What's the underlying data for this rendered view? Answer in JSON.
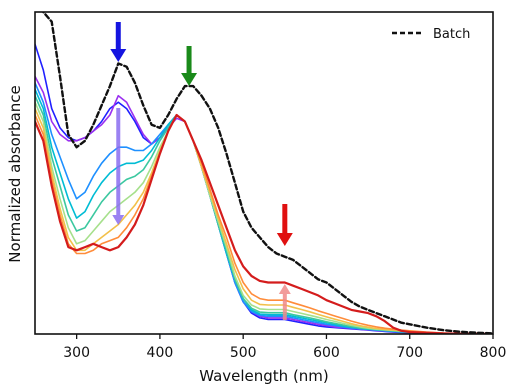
{
  "chart_data": {
    "type": "line",
    "title": "",
    "xlabel": "Wavelength (nm)",
    "ylabel": "Normalized absorbance",
    "xlim": [
      250,
      800
    ],
    "ylim": [
      0,
      1
    ],
    "x_ticks": [
      "300",
      "400",
      "500",
      "600",
      "700",
      "800"
    ],
    "y_ticks": [],
    "grid": false,
    "legend_position": "top-right",
    "x": [
      250,
      260,
      270,
      280,
      290,
      300,
      310,
      320,
      330,
      340,
      350,
      360,
      370,
      380,
      390,
      400,
      410,
      420,
      430,
      440,
      450,
      460,
      470,
      480,
      490,
      500,
      510,
      520,
      530,
      540,
      550,
      560,
      570,
      580,
      590,
      600,
      610,
      620,
      630,
      640,
      650,
      660,
      670,
      680,
      690,
      700,
      720,
      740,
      760,
      780,
      800
    ],
    "series": [
      {
        "name": "Batch",
        "color": "#111111",
        "dash": true,
        "width": 2.4,
        "values": [
          1.03,
          1.0,
          0.97,
          0.8,
          0.62,
          0.58,
          0.6,
          0.65,
          0.71,
          0.77,
          0.84,
          0.83,
          0.78,
          0.71,
          0.65,
          0.64,
          0.68,
          0.73,
          0.77,
          0.77,
          0.74,
          0.7,
          0.64,
          0.56,
          0.47,
          0.38,
          0.33,
          0.3,
          0.27,
          0.25,
          0.24,
          0.23,
          0.21,
          0.19,
          0.17,
          0.16,
          0.14,
          0.12,
          0.1,
          0.085,
          0.075,
          0.065,
          0.055,
          0.045,
          0.035,
          0.03,
          0.02,
          0.012,
          0.007,
          0.004,
          0.002
        ]
      },
      {
        "color": "#2020ff",
        "width": 1.6,
        "values": [
          0.9,
          0.82,
          0.7,
          0.64,
          0.61,
          0.6,
          0.61,
          0.63,
          0.66,
          0.7,
          0.72,
          0.7,
          0.66,
          0.61,
          0.59,
          0.61,
          0.64,
          0.68,
          0.66,
          0.6,
          0.52,
          0.43,
          0.34,
          0.25,
          0.16,
          0.1,
          0.065,
          0.05,
          0.045,
          0.045,
          0.045,
          0.04,
          0.035,
          0.03,
          0.025,
          0.022,
          0.02,
          0.018,
          0.016,
          0.014,
          0.012,
          0.01,
          0.008,
          0.006,
          0.005,
          0.004,
          0.003,
          0.002,
          0.001,
          0.001,
          0.0
        ]
      },
      {
        "color": "#9b30f0",
        "width": 1.6,
        "values": [
          0.8,
          0.75,
          0.66,
          0.62,
          0.6,
          0.6,
          0.61,
          0.63,
          0.65,
          0.68,
          0.74,
          0.72,
          0.67,
          0.62,
          0.59,
          0.61,
          0.64,
          0.67,
          0.66,
          0.6,
          0.52,
          0.43,
          0.34,
          0.25,
          0.16,
          0.1,
          0.07,
          0.055,
          0.05,
          0.05,
          0.05,
          0.045,
          0.04,
          0.035,
          0.03,
          0.026,
          0.022,
          0.02,
          0.018,
          0.015,
          0.013,
          0.011,
          0.009,
          0.007,
          0.006,
          0.005,
          0.003,
          0.002,
          0.001,
          0.001,
          0.0
        ]
      },
      {
        "color": "#1e90ff",
        "width": 1.6,
        "values": [
          0.78,
          0.72,
          0.62,
          0.55,
          0.48,
          0.42,
          0.44,
          0.49,
          0.53,
          0.56,
          0.58,
          0.58,
          0.57,
          0.57,
          0.59,
          0.62,
          0.65,
          0.68,
          0.66,
          0.6,
          0.52,
          0.43,
          0.34,
          0.25,
          0.16,
          0.1,
          0.07,
          0.058,
          0.055,
          0.055,
          0.055,
          0.05,
          0.045,
          0.04,
          0.035,
          0.03,
          0.026,
          0.022,
          0.019,
          0.016,
          0.014,
          0.012,
          0.01,
          0.008,
          0.006,
          0.005,
          0.004,
          0.002,
          0.001,
          0.001,
          0.0
        ]
      },
      {
        "color": "#00bcd4",
        "width": 1.6,
        "values": [
          0.76,
          0.7,
          0.58,
          0.5,
          0.42,
          0.36,
          0.38,
          0.43,
          0.47,
          0.5,
          0.52,
          0.53,
          0.53,
          0.54,
          0.57,
          0.61,
          0.65,
          0.68,
          0.66,
          0.6,
          0.52,
          0.43,
          0.34,
          0.25,
          0.17,
          0.11,
          0.075,
          0.062,
          0.06,
          0.06,
          0.06,
          0.055,
          0.05,
          0.045,
          0.04,
          0.035,
          0.03,
          0.025,
          0.021,
          0.018,
          0.015,
          0.013,
          0.011,
          0.009,
          0.007,
          0.006,
          0.004,
          0.002,
          0.001,
          0.001,
          0.0
        ]
      },
      {
        "color": "#3cc8a0",
        "width": 1.6,
        "values": [
          0.74,
          0.68,
          0.55,
          0.46,
          0.37,
          0.32,
          0.33,
          0.37,
          0.41,
          0.44,
          0.46,
          0.48,
          0.49,
          0.51,
          0.55,
          0.6,
          0.64,
          0.68,
          0.66,
          0.6,
          0.52,
          0.43,
          0.34,
          0.26,
          0.17,
          0.11,
          0.08,
          0.068,
          0.066,
          0.066,
          0.066,
          0.06,
          0.055,
          0.05,
          0.044,
          0.038,
          0.033,
          0.028,
          0.023,
          0.019,
          0.016,
          0.014,
          0.012,
          0.01,
          0.008,
          0.006,
          0.004,
          0.002,
          0.001,
          0.001,
          0.0
        ]
      },
      {
        "color": "#a6e08c",
        "width": 1.6,
        "values": [
          0.72,
          0.66,
          0.52,
          0.42,
          0.33,
          0.28,
          0.29,
          0.32,
          0.35,
          0.38,
          0.4,
          0.42,
          0.44,
          0.47,
          0.52,
          0.58,
          0.63,
          0.68,
          0.66,
          0.6,
          0.52,
          0.43,
          0.35,
          0.27,
          0.18,
          0.12,
          0.09,
          0.078,
          0.076,
          0.076,
          0.076,
          0.07,
          0.064,
          0.058,
          0.052,
          0.045,
          0.039,
          0.033,
          0.027,
          0.022,
          0.018,
          0.015,
          0.013,
          0.011,
          0.009,
          0.007,
          0.004,
          0.002,
          0.001,
          0.001,
          0.0
        ]
      },
      {
        "color": "#f2c04a",
        "width": 1.6,
        "values": [
          0.7,
          0.64,
          0.5,
          0.39,
          0.3,
          0.26,
          0.26,
          0.28,
          0.3,
          0.32,
          0.34,
          0.37,
          0.4,
          0.44,
          0.5,
          0.57,
          0.63,
          0.68,
          0.66,
          0.6,
          0.52,
          0.44,
          0.36,
          0.28,
          0.2,
          0.14,
          0.105,
          0.092,
          0.09,
          0.09,
          0.09,
          0.083,
          0.076,
          0.069,
          0.061,
          0.053,
          0.046,
          0.039,
          0.032,
          0.026,
          0.021,
          0.017,
          0.014,
          0.012,
          0.01,
          0.008,
          0.005,
          0.002,
          0.001,
          0.001,
          0.0
        ]
      },
      {
        "color": "#ff8c3a",
        "width": 1.6,
        "values": [
          0.68,
          0.62,
          0.48,
          0.37,
          0.28,
          0.25,
          0.25,
          0.26,
          0.28,
          0.29,
          0.3,
          0.33,
          0.37,
          0.42,
          0.49,
          0.56,
          0.63,
          0.68,
          0.66,
          0.6,
          0.53,
          0.45,
          0.37,
          0.3,
          0.22,
          0.16,
          0.125,
          0.11,
          0.105,
          0.105,
          0.105,
          0.097,
          0.089,
          0.081,
          0.072,
          0.064,
          0.056,
          0.048,
          0.04,
          0.033,
          0.027,
          0.022,
          0.018,
          0.015,
          0.012,
          0.01,
          0.006,
          0.003,
          0.001,
          0.001,
          0.0
        ]
      },
      {
        "color": "#d41c1c",
        "width": 2.2,
        "values": [
          0.66,
          0.6,
          0.46,
          0.35,
          0.27,
          0.26,
          0.27,
          0.28,
          0.27,
          0.26,
          0.27,
          0.3,
          0.34,
          0.4,
          0.48,
          0.56,
          0.63,
          0.68,
          0.66,
          0.6,
          0.54,
          0.47,
          0.4,
          0.33,
          0.26,
          0.21,
          0.18,
          0.165,
          0.16,
          0.16,
          0.16,
          0.15,
          0.14,
          0.13,
          0.12,
          0.105,
          0.095,
          0.085,
          0.075,
          0.07,
          0.065,
          0.055,
          0.04,
          0.02,
          0.01,
          0.006,
          0.004,
          0.002,
          0.001,
          0.001,
          0.0
        ]
      }
    ],
    "annotations": [
      {
        "type": "arrow",
        "direction": "down",
        "color": "#1515e0",
        "at_x": 350
      },
      {
        "type": "arrow",
        "direction": "down",
        "color": "#1a8a1a",
        "at_x": 435
      },
      {
        "type": "arrow",
        "direction": "down",
        "color": "#e01010",
        "at_x": 550
      },
      {
        "type": "arrow",
        "direction": "down",
        "color": "#8a6cf0",
        "at_x": 350,
        "inside": true
      },
      {
        "type": "arrow",
        "direction": "up",
        "color": "#f08a8a",
        "at_x": 550,
        "inside": true
      }
    ]
  }
}
